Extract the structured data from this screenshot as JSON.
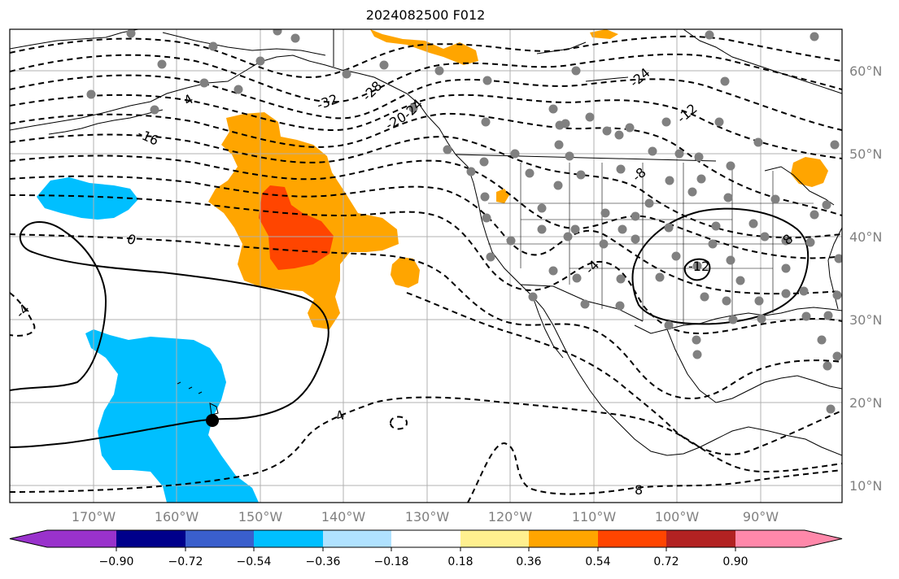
{
  "title": "2024082500 F012",
  "lat_labels": [
    {
      "text": "60°N",
      "lat": 60
    },
    {
      "text": "50°N",
      "lat": 50
    },
    {
      "text": "40°N",
      "lat": 40
    },
    {
      "text": "30°N",
      "lat": 30
    },
    {
      "text": "20°N",
      "lat": 20
    },
    {
      "text": "10°N",
      "lat": 10
    }
  ],
  "lon_labels": [
    {
      "text": "170°W",
      "lon": -170
    },
    {
      "text": "160°W",
      "lon": -160
    },
    {
      "text": "150°W",
      "lon": -150
    },
    {
      "text": "140°W",
      "lon": -140
    },
    {
      "text": "130°W",
      "lon": -130
    },
    {
      "text": "120°W",
      "lon": -120
    },
    {
      "text": "110°W",
      "lon": -110
    },
    {
      "text": "100°W",
      "lon": -100
    },
    {
      "text": "90°W",
      "lon": -90
    }
  ],
  "contour_labels": [
    "-32",
    "-28",
    "-24",
    "-20",
    "-16",
    "-12",
    "-8",
    "-4",
    "0",
    "4",
    "8",
    "-4",
    "-24",
    "-12",
    "8",
    "4"
  ],
  "colorbar": {
    "colors": [
      "#9932cc",
      "#00008b",
      "#3a5fcd",
      "#00bfff",
      "#b0e2ff",
      "#ffffff",
      "#fff08f",
      "#ffa500",
      "#ff4500",
      "#b22222",
      "#ff88aa"
    ],
    "tick_labels": [
      "−0.90",
      "−0.72",
      "−0.54",
      "−0.36",
      "−0.18",
      "0.18",
      "0.36",
      "0.54",
      "0.72",
      "0.90"
    ]
  },
  "shading_colors": {
    "positive_medium": "#ffa500",
    "positive_strong": "#ff4500",
    "negative_medium": "#00bfff",
    "station_dot": "#808080"
  }
}
